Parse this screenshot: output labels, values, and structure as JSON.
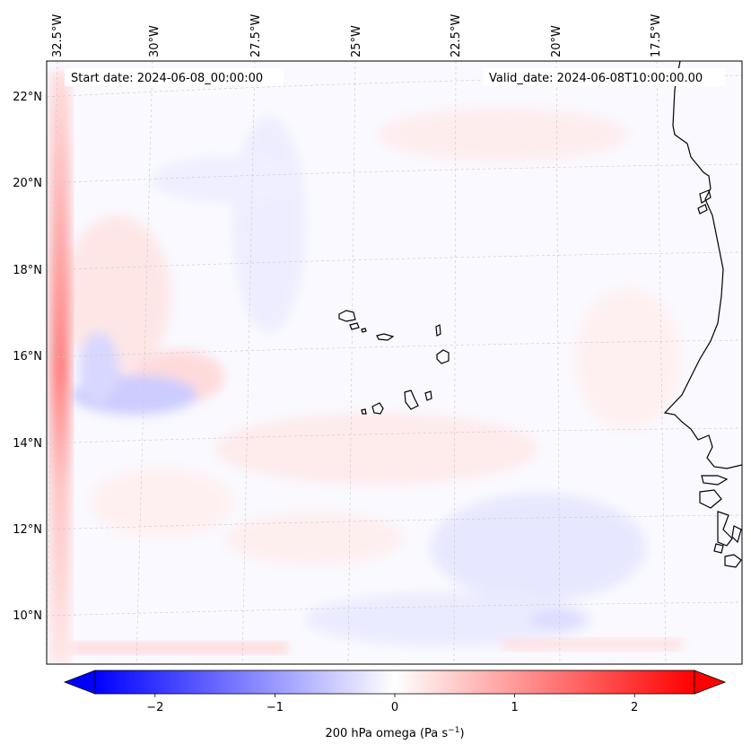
{
  "map": {
    "start_date_text": "Start date: 2024-06-08_00:00:00",
    "valid_date_text": "Valid_date: 2024-06-08T10:00:00.00",
    "lon_labels": [
      "32.5°W",
      "30°W",
      "27.5°W",
      "25°W",
      "22.5°W",
      "20°W",
      "17.5°W"
    ],
    "lat_labels": [
      "22°N",
      "20°N",
      "18°N",
      "16°N",
      "14°N",
      "12°N",
      "10°N"
    ],
    "colors": {
      "negative": "#0000ff",
      "zero": "#ffffff",
      "positive": "#ff0000",
      "coastline": "#000000",
      "gridline": "#bbbbbb"
    }
  },
  "colorbar": {
    "label": "200 hPa omega (Pa s",
    "label_sup": "−1",
    "label_close": ")",
    "ticks": [
      {
        "value": -2,
        "text": "−2"
      },
      {
        "value": -1,
        "text": "−1"
      },
      {
        "value": 0,
        "text": "0"
      },
      {
        "value": 1,
        "text": "1"
      },
      {
        "value": 2,
        "text": "2"
      }
    ],
    "vmin": -2.5,
    "vmax": 2.5,
    "extend": "both"
  }
}
